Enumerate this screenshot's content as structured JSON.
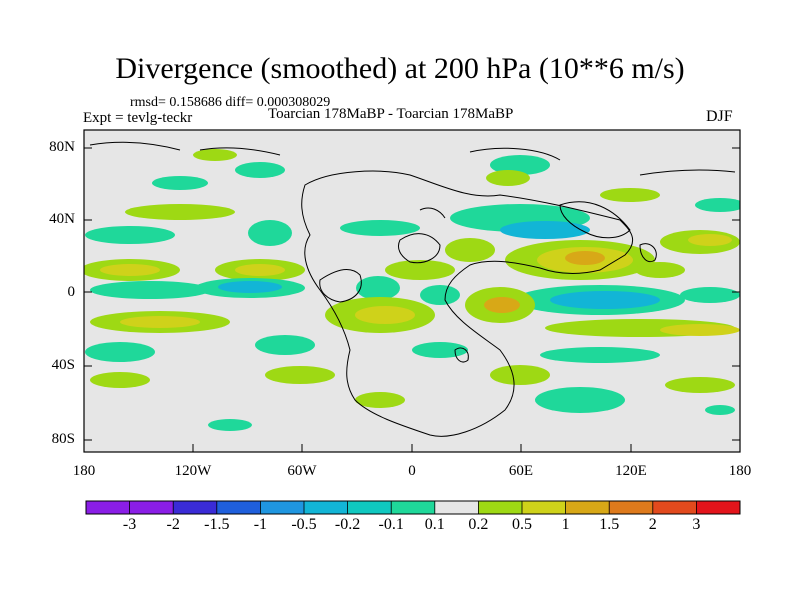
{
  "title": "Divergence (smoothed) at 200 hPa (10**6 m/s)",
  "stats": "rmsd= 0.158686 diff= 0.000308029",
  "expt": "Expt = tevlg-teckr",
  "comparison": "Toarcian 178MaBP - Toarcian 178MaBP",
  "season": "DJF",
  "lat_ticks": [
    "80N",
    "40N",
    "0",
    "40S",
    "80S"
  ],
  "lon_ticks": [
    "180",
    "120W",
    "60W",
    "0",
    "60E",
    "120E",
    "180"
  ],
  "colorbar": {
    "labels": [
      "-3",
      "-2",
      "-1.5",
      "-1",
      "-0.5",
      "-0.2",
      "-0.1",
      "0.1",
      "0.2",
      "0.5",
      "1",
      "1.5",
      "2",
      "3"
    ],
    "colors": [
      "#8a1ee6",
      "#3a2bd6",
      "#1f5fdc",
      "#1f96e0",
      "#12b5d6",
      "#10c8c0",
      "#1fd89a",
      "#e6e6e6",
      "#9ed914",
      "#cfd21a",
      "#d8a817",
      "#de7a1c",
      "#e24a1d",
      "#e3141b"
    ]
  },
  "palette": {
    "background": "#e6e6e6",
    "coast": "#000000"
  }
}
